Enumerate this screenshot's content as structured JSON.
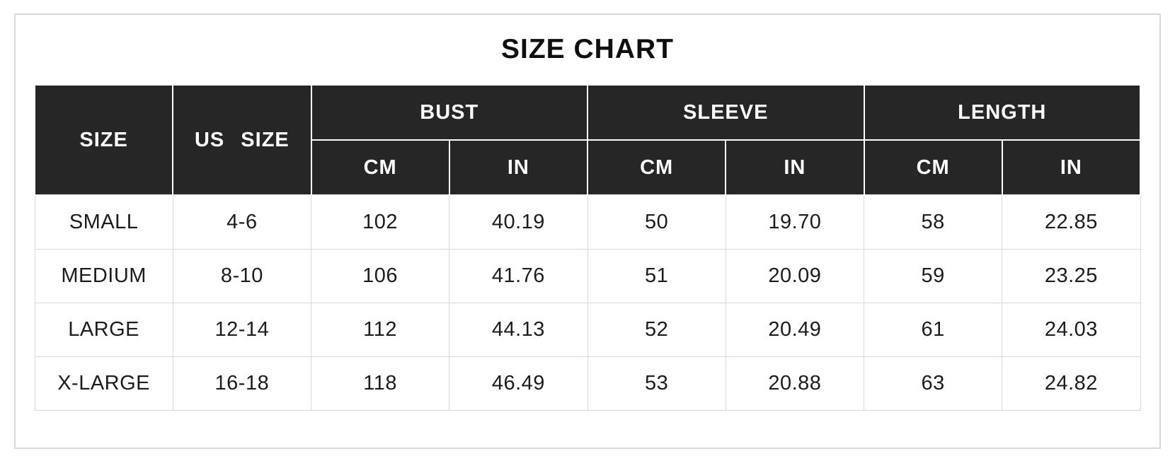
{
  "title": "SIZE CHART",
  "colors": {
    "header_bg": "#262626",
    "header_text": "#ffffff",
    "body_text": "#1d1d1d",
    "grid_border": "#d9d9d9",
    "card_border": "#d9d9d9",
    "background": "#ffffff"
  },
  "table": {
    "corner_headers": [
      "SIZE",
      "US SIZE"
    ],
    "group_headers": [
      "BUST",
      "SLEEVE",
      "LENGTH"
    ],
    "unit_headers": [
      "CM",
      "IN",
      "CM",
      "IN",
      "CM",
      "IN"
    ],
    "rows": [
      [
        "SMALL",
        "4-6",
        "102",
        "40.19",
        "50",
        "19.70",
        "58",
        "22.85"
      ],
      [
        "MEDIUM",
        "8-10",
        "106",
        "41.76",
        "51",
        "20.09",
        "59",
        "23.25"
      ],
      [
        "LARGE",
        "12-14",
        "112",
        "44.13",
        "52",
        "20.49",
        "61",
        "24.03"
      ],
      [
        "X-LARGE",
        "16-18",
        "118",
        "46.49",
        "53",
        "20.88",
        "63",
        "24.82"
      ]
    ]
  },
  "chart_data": {
    "type": "table",
    "title": "SIZE CHART",
    "columns": [
      "SIZE",
      "US SIZE",
      "BUST CM",
      "BUST IN",
      "SLEEVE CM",
      "SLEEVE IN",
      "LENGTH CM",
      "LENGTH IN"
    ],
    "rows": [
      [
        "SMALL",
        "4-6",
        "102",
        "40.19",
        "50",
        "19.70",
        "58",
        "22.85"
      ],
      [
        "MEDIUM",
        "8-10",
        "106",
        "41.76",
        "51",
        "20.09",
        "59",
        "23.25"
      ],
      [
        "LARGE",
        "12-14",
        "112",
        "44.13",
        "52",
        "20.49",
        "61",
        "24.03"
      ],
      [
        "X-LARGE",
        "16-18",
        "118",
        "46.49",
        "53",
        "20.88",
        "63",
        "24.82"
      ]
    ]
  }
}
